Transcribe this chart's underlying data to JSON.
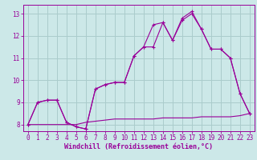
{
  "x_values": [
    0,
    1,
    2,
    3,
    4,
    5,
    6,
    7,
    8,
    9,
    10,
    11,
    12,
    13,
    14,
    15,
    16,
    17,
    18,
    19,
    20,
    21,
    22,
    23
  ],
  "line1": [
    8.0,
    9.0,
    9.1,
    9.1,
    8.1,
    7.9,
    7.8,
    9.6,
    9.8,
    9.9,
    9.9,
    11.1,
    11.5,
    11.5,
    12.6,
    11.8,
    12.7,
    13.0,
    12.3,
    11.4,
    11.4,
    11.0,
    9.4,
    8.5
  ],
  "line2": [
    8.0,
    9.0,
    9.1,
    9.1,
    8.1,
    7.9,
    7.8,
    9.6,
    9.8,
    9.9,
    9.9,
    11.1,
    11.5,
    12.5,
    12.6,
    11.8,
    12.8,
    13.1,
    12.3,
    11.4,
    11.4,
    11.0,
    9.4,
    8.5
  ],
  "line3": [
    8.0,
    8.0,
    8.0,
    8.0,
    8.0,
    8.0,
    8.1,
    8.15,
    8.2,
    8.25,
    8.25,
    8.25,
    8.25,
    8.25,
    8.3,
    8.3,
    8.3,
    8.3,
    8.35,
    8.35,
    8.35,
    8.35,
    8.4,
    8.5
  ],
  "line_color": "#990099",
  "bg_color": "#cce8e8",
  "grid_color": "#aacccc",
  "xlabel": "Windchill (Refroidissement éolien,°C)",
  "ylim": [
    7.7,
    13.4
  ],
  "xlim": [
    -0.5,
    23.5
  ],
  "yticks": [
    8,
    9,
    10,
    11,
    12,
    13
  ],
  "xticks": [
    0,
    1,
    2,
    3,
    4,
    5,
    6,
    7,
    8,
    9,
    10,
    11,
    12,
    13,
    14,
    15,
    16,
    17,
    18,
    19,
    20,
    21,
    22,
    23
  ],
  "tick_fontsize": 5.5,
  "xlabel_fontsize": 6.0
}
